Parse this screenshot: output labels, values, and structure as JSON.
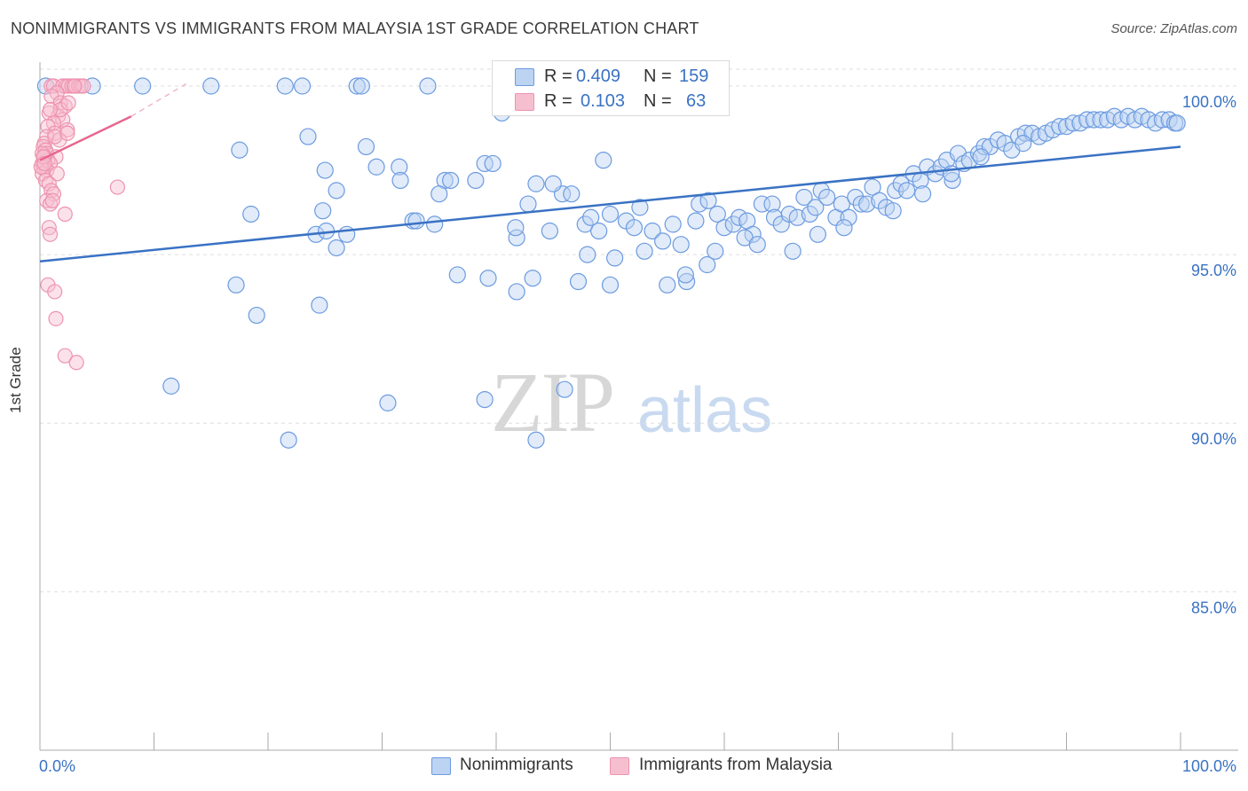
{
  "title": "NONIMMIGRANTS VS IMMIGRANTS FROM MALAYSIA 1ST GRADE CORRELATION CHART",
  "source": "Source: ZipAtlas.com",
  "watermark": {
    "zip": "ZIP",
    "atlas": "atlas"
  },
  "colors": {
    "blue": "#3a72c4",
    "blue_fill": "#bcd3f2",
    "pink": "#e8678f",
    "pink_fill": "#f6bfd0",
    "grid": "#dddddd"
  },
  "legend": {
    "r_label": "R =",
    "n_label": "N =",
    "series": [
      {
        "name": "Nonimmigrants",
        "r": "0.409",
        "n": "159"
      },
      {
        "name": "Immigrants from Malaysia",
        "r": "0.103",
        "n": "63"
      }
    ]
  },
  "chart_data": {
    "type": "scatter",
    "title": "NONIMMIGRANTS VS IMMIGRANTS FROM MALAYSIA 1ST GRADE CORRELATION CHART",
    "xlabel": "",
    "ylabel": "1st Grade",
    "xlim": [
      0,
      100
    ],
    "ylim": [
      80.3,
      100.5
    ],
    "x_tick_labels": [
      "0.0%",
      "100.0%"
    ],
    "y_ticks": [
      100,
      95,
      90,
      85
    ],
    "y_tick_labels": [
      "100.0%",
      "95.0%",
      "90.0%",
      "85.0%"
    ],
    "series": [
      {
        "name": "Nonimmigrants",
        "trend": {
          "x": [
            0,
            100
          ],
          "y": [
            94.8,
            98.2
          ]
        },
        "points": [
          [
            0.5,
            100
          ],
          [
            4.6,
            100
          ],
          [
            9,
            100
          ],
          [
            15,
            100
          ],
          [
            21.5,
            100
          ],
          [
            23,
            100
          ],
          [
            27.8,
            100
          ],
          [
            28.2,
            100
          ],
          [
            34,
            100
          ],
          [
            40.5,
            99.2
          ],
          [
            23.5,
            98.5
          ],
          [
            28.6,
            98.2
          ],
          [
            25,
            97.5
          ],
          [
            29.5,
            97.6
          ],
          [
            31.5,
            97.6
          ],
          [
            31.6,
            97.2
          ],
          [
            26,
            96.9
          ],
          [
            24.8,
            96.3
          ],
          [
            35.5,
            97.2
          ],
          [
            36,
            97.2
          ],
          [
            38.2,
            97.2
          ],
          [
            35,
            96.8
          ],
          [
            39,
            97.7
          ],
          [
            39.7,
            97.7
          ],
          [
            43.5,
            97.1
          ],
          [
            45.8,
            96.8
          ],
          [
            46.6,
            96.8
          ],
          [
            42.8,
            96.5
          ],
          [
            49.4,
            97.8
          ],
          [
            32.7,
            96
          ],
          [
            33,
            96
          ],
          [
            34.6,
            95.9
          ],
          [
            24.2,
            95.6
          ],
          [
            25.1,
            95.7
          ],
          [
            26.9,
            95.6
          ],
          [
            26,
            95.2
          ],
          [
            41.8,
            95.5
          ],
          [
            41.7,
            95.8
          ],
          [
            44.7,
            95.7
          ],
          [
            47.8,
            95.9
          ],
          [
            48.3,
            96.1
          ],
          [
            49,
            95.7
          ],
          [
            50,
            96.2
          ],
          [
            51.4,
            96
          ],
          [
            52.1,
            95.8
          ],
          [
            52.6,
            96.4
          ],
          [
            53.7,
            95.7
          ],
          [
            54.6,
            95.4
          ],
          [
            55.5,
            95.9
          ],
          [
            56.2,
            95.3
          ],
          [
            57.5,
            96
          ],
          [
            57.8,
            96.5
          ],
          [
            58.6,
            96.6
          ],
          [
            59.4,
            96.2
          ],
          [
            60,
            95.8
          ],
          [
            60.8,
            95.9
          ],
          [
            61.3,
            96.1
          ],
          [
            62,
            96
          ],
          [
            62.5,
            95.6
          ],
          [
            63.3,
            96.5
          ],
          [
            64.2,
            96.5
          ],
          [
            64.4,
            96.1
          ],
          [
            65,
            95.9
          ],
          [
            65.7,
            96.2
          ],
          [
            66.4,
            96.1
          ],
          [
            67,
            96.7
          ],
          [
            67.5,
            96.2
          ],
          [
            68,
            96.4
          ],
          [
            68.5,
            96.9
          ],
          [
            69,
            96.7
          ],
          [
            69.8,
            96.1
          ],
          [
            70.3,
            96.5
          ],
          [
            70.9,
            96.1
          ],
          [
            71.5,
            96.7
          ],
          [
            72,
            96.5
          ],
          [
            72.5,
            96.5
          ],
          [
            73,
            97
          ],
          [
            73.6,
            96.6
          ],
          [
            74.2,
            96.4
          ],
          [
            75,
            96.9
          ],
          [
            75.5,
            97.1
          ],
          [
            76,
            96.9
          ],
          [
            76.6,
            97.4
          ],
          [
            77.2,
            97.2
          ],
          [
            77.8,
            97.6
          ],
          [
            78.5,
            97.4
          ],
          [
            79,
            97.6
          ],
          [
            79.5,
            97.8
          ],
          [
            80,
            97.2
          ],
          [
            80.5,
            98
          ],
          [
            81,
            97.7
          ],
          [
            81.5,
            97.8
          ],
          [
            82.3,
            98
          ],
          [
            82.8,
            98.2
          ],
          [
            83.3,
            98.2
          ],
          [
            84,
            98.4
          ],
          [
            84.6,
            98.3
          ],
          [
            85.2,
            98.1
          ],
          [
            85.8,
            98.5
          ],
          [
            86.4,
            98.6
          ],
          [
            87,
            98.6
          ],
          [
            87.6,
            98.5
          ],
          [
            88.2,
            98.6
          ],
          [
            88.8,
            98.7
          ],
          [
            89.4,
            98.8
          ],
          [
            90,
            98.8
          ],
          [
            90.6,
            98.9
          ],
          [
            91.2,
            98.9
          ],
          [
            91.8,
            99
          ],
          [
            92.4,
            99
          ],
          [
            93,
            99
          ],
          [
            93.6,
            99
          ],
          [
            94.2,
            99.1
          ],
          [
            94.8,
            99
          ],
          [
            95.4,
            99.1
          ],
          [
            96,
            99
          ],
          [
            96.6,
            99.1
          ],
          [
            97.2,
            99
          ],
          [
            97.8,
            98.9
          ],
          [
            98.4,
            99
          ],
          [
            99,
            99
          ],
          [
            99.5,
            98.9
          ],
          [
            99.7,
            98.9
          ],
          [
            17.5,
            98.1
          ],
          [
            17.2,
            94.1
          ],
          [
            18.5,
            96.2
          ],
          [
            36.6,
            94.4
          ],
          [
            39.3,
            94.3
          ],
          [
            41.8,
            93.9
          ],
          [
            43.2,
            94.3
          ],
          [
            47.2,
            94.2
          ],
          [
            50,
            94.1
          ],
          [
            55,
            94.1
          ],
          [
            56.7,
            94.2
          ],
          [
            58.5,
            94.7
          ],
          [
            59.2,
            95.1
          ],
          [
            50.4,
            94.9
          ],
          [
            24.5,
            93.5
          ],
          [
            19,
            93.2
          ],
          [
            11.5,
            91.1
          ],
          [
            46,
            91
          ],
          [
            39,
            90.7
          ],
          [
            30.5,
            90.6
          ],
          [
            21.8,
            89.5
          ],
          [
            43.5,
            89.5
          ],
          [
            45,
            97.1
          ],
          [
            48,
            95
          ],
          [
            53,
            95.1
          ],
          [
            56.6,
            94.4
          ],
          [
            61.8,
            95.5
          ],
          [
            62.9,
            95.3
          ],
          [
            66,
            95.1
          ],
          [
            68.2,
            95.6
          ],
          [
            70.5,
            95.8
          ],
          [
            74.8,
            96.3
          ],
          [
            77.4,
            96.8
          ],
          [
            79.9,
            97.4
          ],
          [
            82.5,
            97.9
          ],
          [
            86.2,
            98.3
          ]
        ]
      },
      {
        "name": "Immigrants from Malaysia",
        "trend": {
          "x": [
            0,
            8
          ],
          "y": [
            97.8,
            99.1
          ]
        },
        "trend_extension": {
          "x": [
            8,
            13
          ],
          "y": [
            99.1,
            100.1
          ]
        },
        "points": [
          [
            1,
            100
          ],
          [
            1.2,
            100
          ],
          [
            2,
            100
          ],
          [
            2.3,
            100
          ],
          [
            2.5,
            100
          ],
          [
            2.8,
            100
          ],
          [
            3.1,
            100
          ],
          [
            3.4,
            100
          ],
          [
            3.6,
            100
          ],
          [
            3.8,
            100
          ],
          [
            1.5,
            99.8
          ],
          [
            1,
            99.7
          ],
          [
            1.8,
            99.5
          ],
          [
            2.2,
            99.4
          ],
          [
            0.8,
            99.2
          ],
          [
            1.6,
            99.1
          ],
          [
            2,
            99
          ],
          [
            1.2,
            98.9
          ],
          [
            0.7,
            98.8
          ],
          [
            2.4,
            98.7
          ],
          [
            1.3,
            98.6
          ],
          [
            0.6,
            98.5
          ],
          [
            1.7,
            98.4
          ],
          [
            0.4,
            98.3
          ],
          [
            0.3,
            98.2
          ],
          [
            0.5,
            98.1
          ],
          [
            0.6,
            98
          ],
          [
            0.4,
            97.9
          ],
          [
            1.4,
            97.9
          ],
          [
            0.7,
            97.8
          ],
          [
            0.2,
            97.7
          ],
          [
            0.9,
            97.7
          ],
          [
            0.3,
            97.6
          ],
          [
            0.6,
            97.5
          ],
          [
            0.2,
            97.4
          ],
          [
            1.5,
            97.4
          ],
          [
            0.5,
            97.2
          ],
          [
            0.8,
            97.1
          ],
          [
            6.8,
            97
          ],
          [
            1,
            96.9
          ],
          [
            1.2,
            96.8
          ],
          [
            0.6,
            96.6
          ],
          [
            0.9,
            96.5
          ],
          [
            2.2,
            96.2
          ],
          [
            0.8,
            95.8
          ],
          [
            0.9,
            95.6
          ],
          [
            0.7,
            94.1
          ],
          [
            1.3,
            93.9
          ],
          [
            1.4,
            93.1
          ],
          [
            2.2,
            92
          ],
          [
            3.2,
            91.8
          ],
          [
            1.1,
            96.6
          ],
          [
            0.4,
            97.9
          ],
          [
            0.2,
            98
          ],
          [
            0.1,
            97.6
          ],
          [
            0.3,
            97.9
          ],
          [
            0.4,
            97.7
          ],
          [
            1.3,
            98.5
          ],
          [
            2.4,
            98.6
          ],
          [
            1.8,
            99.3
          ],
          [
            0.9,
            99.3
          ],
          [
            2.5,
            99.5
          ],
          [
            3,
            100
          ]
        ]
      }
    ]
  }
}
